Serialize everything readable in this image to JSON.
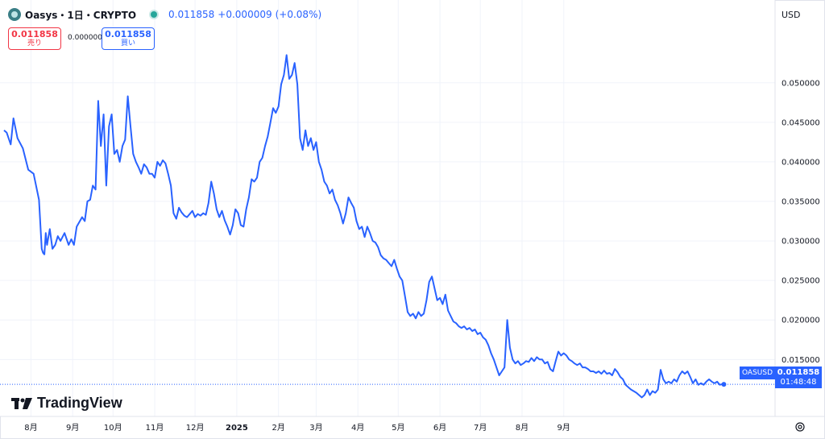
{
  "header": {
    "symbol": "Oasys・1日・CRYPTO",
    "last_price": "0.011858",
    "change": "+0.000009",
    "change_pct": "(+0.08%)",
    "icon": "oasys-logo-icon"
  },
  "trade": {
    "sell_price": "0.011858",
    "sell_label": "売り",
    "spread": "0.000000",
    "buy_price": "0.011858",
    "buy_label": "買い"
  },
  "currency": "USD",
  "price_tag": {
    "ticker": "OASUSD",
    "price": "0.011858",
    "countdown": "01:48:48"
  },
  "branding": "TradingView",
  "colors": {
    "line": "#2962ff",
    "sell": "#f23645",
    "buy": "#2962ff",
    "live": "#26a69a"
  },
  "chart_data": {
    "type": "line",
    "series": [
      {
        "values": [
          [
            0,
            0.044
          ],
          [
            2,
            0.0437
          ],
          [
            5,
            0.0422
          ],
          [
            7,
            0.0455
          ],
          [
            10,
            0.043
          ],
          [
            14,
            0.0417
          ],
          [
            18,
            0.039
          ],
          [
            22,
            0.0385
          ],
          [
            26,
            0.0352
          ],
          [
            28,
            0.029
          ],
          [
            29,
            0.0285
          ],
          [
            30,
            0.0283
          ],
          [
            31,
            0.031
          ],
          [
            32,
            0.0295
          ],
          [
            34,
            0.0315
          ],
          [
            36,
            0.029
          ],
          [
            38,
            0.0295
          ],
          [
            40,
            0.0306
          ],
          [
            42,
            0.03
          ],
          [
            45,
            0.031
          ],
          [
            48,
            0.0295
          ],
          [
            50,
            0.0302
          ],
          [
            52,
            0.0295
          ],
          [
            54,
            0.0318
          ],
          [
            58,
            0.033
          ],
          [
            60,
            0.0325
          ],
          [
            62,
            0.035
          ],
          [
            64,
            0.0352
          ],
          [
            66,
            0.037
          ],
          [
            68,
            0.0365
          ],
          [
            70,
            0.0477
          ],
          [
            72,
            0.042
          ],
          [
            74,
            0.046
          ],
          [
            76,
            0.037
          ],
          [
            78,
            0.0445
          ],
          [
            80,
            0.046
          ],
          [
            82,
            0.041
          ],
          [
            84,
            0.0415
          ],
          [
            86,
            0.04
          ],
          [
            88,
            0.042
          ],
          [
            90,
            0.0428
          ],
          [
            92,
            0.0483
          ],
          [
            94,
            0.0445
          ],
          [
            96,
            0.041
          ],
          [
            98,
            0.04
          ],
          [
            100,
            0.0393
          ],
          [
            102,
            0.0385
          ],
          [
            104,
            0.0397
          ],
          [
            106,
            0.0393
          ],
          [
            108,
            0.0385
          ],
          [
            110,
            0.0385
          ],
          [
            112,
            0.038
          ],
          [
            114,
            0.04
          ],
          [
            116,
            0.0395
          ],
          [
            118,
            0.0402
          ],
          [
            120,
            0.0398
          ],
          [
            122,
            0.0385
          ],
          [
            124,
            0.037
          ],
          [
            126,
            0.0335
          ],
          [
            128,
            0.0328
          ],
          [
            130,
            0.0342
          ],
          [
            132,
            0.0336
          ],
          [
            134,
            0.0332
          ],
          [
            136,
            0.033
          ],
          [
            138,
            0.0334
          ],
          [
            140,
            0.0338
          ],
          [
            142,
            0.033
          ],
          [
            144,
            0.0334
          ],
          [
            146,
            0.0332
          ],
          [
            148,
            0.0335
          ],
          [
            150,
            0.0333
          ],
          [
            152,
            0.0348
          ],
          [
            154,
            0.0375
          ],
          [
            156,
            0.036
          ],
          [
            158,
            0.034
          ],
          [
            160,
            0.033
          ],
          [
            162,
            0.0338
          ],
          [
            164,
            0.0326
          ],
          [
            166,
            0.0318
          ],
          [
            168,
            0.0308
          ],
          [
            170,
            0.032
          ],
          [
            172,
            0.034
          ],
          [
            174,
            0.0335
          ],
          [
            176,
            0.032
          ],
          [
            178,
            0.0318
          ],
          [
            180,
            0.034
          ],
          [
            182,
            0.0355
          ],
          [
            184,
            0.0378
          ],
          [
            186,
            0.0375
          ],
          [
            188,
            0.038
          ],
          [
            190,
            0.04
          ],
          [
            192,
            0.0405
          ],
          [
            194,
            0.042
          ],
          [
            196,
            0.0432
          ],
          [
            198,
            0.045
          ],
          [
            200,
            0.0468
          ],
          [
            202,
            0.0462
          ],
          [
            204,
            0.047
          ],
          [
            206,
            0.0498
          ],
          [
            208,
            0.051
          ],
          [
            210,
            0.0535
          ],
          [
            212,
            0.0505
          ],
          [
            214,
            0.051
          ],
          [
            216,
            0.0525
          ],
          [
            218,
            0.0498
          ],
          [
            220,
            0.043
          ],
          [
            222,
            0.0415
          ],
          [
            224,
            0.044
          ],
          [
            226,
            0.042
          ],
          [
            228,
            0.043
          ],
          [
            230,
            0.0415
          ],
          [
            232,
            0.0425
          ],
          [
            234,
            0.04
          ],
          [
            236,
            0.039
          ],
          [
            238,
            0.0375
          ],
          [
            240,
            0.037
          ],
          [
            242,
            0.036
          ],
          [
            244,
            0.0365
          ],
          [
            246,
            0.0352
          ],
          [
            248,
            0.0345
          ],
          [
            250,
            0.0335
          ],
          [
            252,
            0.0322
          ],
          [
            254,
            0.0335
          ],
          [
            256,
            0.0355
          ],
          [
            258,
            0.0348
          ],
          [
            260,
            0.0342
          ],
          [
            262,
            0.0325
          ],
          [
            264,
            0.0315
          ],
          [
            266,
            0.0318
          ],
          [
            268,
            0.0305
          ],
          [
            270,
            0.0318
          ],
          [
            272,
            0.031
          ],
          [
            274,
            0.03
          ],
          [
            276,
            0.0298
          ],
          [
            278,
            0.0292
          ],
          [
            280,
            0.0282
          ],
          [
            282,
            0.0278
          ],
          [
            284,
            0.0276
          ],
          [
            286,
            0.0272
          ],
          [
            288,
            0.0268
          ],
          [
            290,
            0.0276
          ],
          [
            292,
            0.0265
          ],
          [
            294,
            0.0255
          ],
          [
            296,
            0.025
          ],
          [
            298,
            0.023
          ],
          [
            300,
            0.021
          ],
          [
            302,
            0.0205
          ],
          [
            304,
            0.0208
          ],
          [
            306,
            0.0202
          ],
          [
            308,
            0.021
          ],
          [
            310,
            0.0205
          ],
          [
            312,
            0.0208
          ],
          [
            314,
            0.0225
          ],
          [
            316,
            0.0248
          ],
          [
            318,
            0.0255
          ],
          [
            320,
            0.024
          ],
          [
            322,
            0.0225
          ],
          [
            324,
            0.0228
          ],
          [
            326,
            0.022
          ],
          [
            328,
            0.0232
          ],
          [
            330,
            0.0212
          ],
          [
            332,
            0.0205
          ],
          [
            334,
            0.0198
          ],
          [
            336,
            0.0196
          ],
          [
            338,
            0.0192
          ],
          [
            340,
            0.019
          ],
          [
            342,
            0.0192
          ],
          [
            344,
            0.0188
          ],
          [
            346,
            0.019
          ],
          [
            348,
            0.0186
          ],
          [
            350,
            0.0188
          ],
          [
            352,
            0.0182
          ],
          [
            354,
            0.0184
          ],
          [
            356,
            0.0178
          ],
          [
            358,
            0.0175
          ],
          [
            360,
            0.0168
          ],
          [
            362,
            0.0158
          ],
          [
            364,
            0.015
          ],
          [
            366,
            0.014
          ],
          [
            368,
            0.013
          ],
          [
            370,
            0.0135
          ],
          [
            372,
            0.014
          ],
          [
            374,
            0.02
          ],
          [
            376,
            0.0165
          ],
          [
            378,
            0.015
          ],
          [
            380,
            0.0145
          ],
          [
            382,
            0.0148
          ],
          [
            384,
            0.0143
          ],
          [
            386,
            0.0145
          ],
          [
            388,
            0.0148
          ],
          [
            390,
            0.0147
          ],
          [
            392,
            0.0152
          ],
          [
            394,
            0.0148
          ],
          [
            396,
            0.0153
          ],
          [
            398,
            0.015
          ],
          [
            400,
            0.015
          ],
          [
            402,
            0.0145
          ],
          [
            404,
            0.0147
          ],
          [
            406,
            0.0138
          ],
          [
            408,
            0.0135
          ],
          [
            410,
            0.0148
          ],
          [
            412,
            0.016
          ],
          [
            414,
            0.0155
          ],
          [
            416,
            0.0158
          ],
          [
            418,
            0.0155
          ],
          [
            420,
            0.015
          ],
          [
            422,
            0.0148
          ],
          [
            424,
            0.0145
          ],
          [
            426,
            0.0143
          ],
          [
            428,
            0.0145
          ],
          [
            430,
            0.014
          ],
          [
            432,
            0.014
          ],
          [
            434,
            0.0138
          ],
          [
            436,
            0.0135
          ],
          [
            438,
            0.0135
          ],
          [
            440,
            0.0133
          ],
          [
            442,
            0.0135
          ],
          [
            444,
            0.0132
          ],
          [
            446,
            0.0136
          ],
          [
            448,
            0.0132
          ],
          [
            450,
            0.0133
          ],
          [
            452,
            0.013
          ],
          [
            454,
            0.0138
          ],
          [
            456,
            0.0134
          ],
          [
            458,
            0.0128
          ],
          [
            460,
            0.0125
          ],
          [
            462,
            0.0118
          ],
          [
            464,
            0.0115
          ],
          [
            466,
            0.0112
          ],
          [
            468,
            0.011
          ],
          [
            470,
            0.0108
          ],
          [
            472,
            0.0105
          ],
          [
            474,
            0.0102
          ],
          [
            476,
            0.0105
          ],
          [
            478,
            0.0112
          ],
          [
            480,
            0.0105
          ],
          [
            482,
            0.011
          ],
          [
            484,
            0.0108
          ],
          [
            486,
            0.0112
          ],
          [
            488,
            0.0137
          ],
          [
            490,
            0.0125
          ],
          [
            492,
            0.012
          ],
          [
            494,
            0.0122
          ],
          [
            496,
            0.012
          ],
          [
            498,
            0.0125
          ],
          [
            500,
            0.0122
          ],
          [
            502,
            0.013
          ],
          [
            504,
            0.0135
          ],
          [
            506,
            0.0132
          ],
          [
            508,
            0.0135
          ],
          [
            510,
            0.0128
          ],
          [
            512,
            0.012
          ],
          [
            514,
            0.0125
          ],
          [
            516,
            0.0118
          ],
          [
            518,
            0.012
          ],
          [
            520,
            0.0118
          ],
          [
            522,
            0.0122
          ],
          [
            524,
            0.0125
          ],
          [
            526,
            0.0122
          ],
          [
            528,
            0.012
          ],
          [
            530,
            0.0122
          ],
          [
            532,
            0.0118
          ],
          [
            534,
            0.0119
          ],
          [
            535,
            0.011858
          ]
        ]
      }
    ],
    "x_ticks": [
      {
        "label": "8月",
        "day": 20
      },
      {
        "label": "9月",
        "day": 51
      },
      {
        "label": "10月",
        "day": 81
      },
      {
        "label": "11月",
        "day": 112
      },
      {
        "label": "12月",
        "day": 142
      },
      {
        "label": "2025",
        "day": 173,
        "bold": true
      },
      {
        "label": "2月",
        "day": 204
      },
      {
        "label": "3月",
        "day": 232
      },
      {
        "label": "4月",
        "day": 263
      },
      {
        "label": "5月",
        "day": 293
      },
      {
        "label": "6月",
        "day": 324
      },
      {
        "label": "7月",
        "day": 354
      },
      {
        "label": "8月",
        "day": 385
      },
      {
        "label": "9月",
        "day": 416
      }
    ],
    "y_ticks": [
      "0.050000",
      "0.045000",
      "0.040000",
      "0.035000",
      "0.030000",
      "0.025000",
      "0.020000",
      "0.015000"
    ],
    "y_tick_values": [
      0.05,
      0.045,
      0.04,
      0.035,
      0.03,
      0.025,
      0.02,
      0.015
    ],
    "ylim": [
      0.0078,
      0.0567
    ],
    "grid": true,
    "last_value": 0.011858
  }
}
